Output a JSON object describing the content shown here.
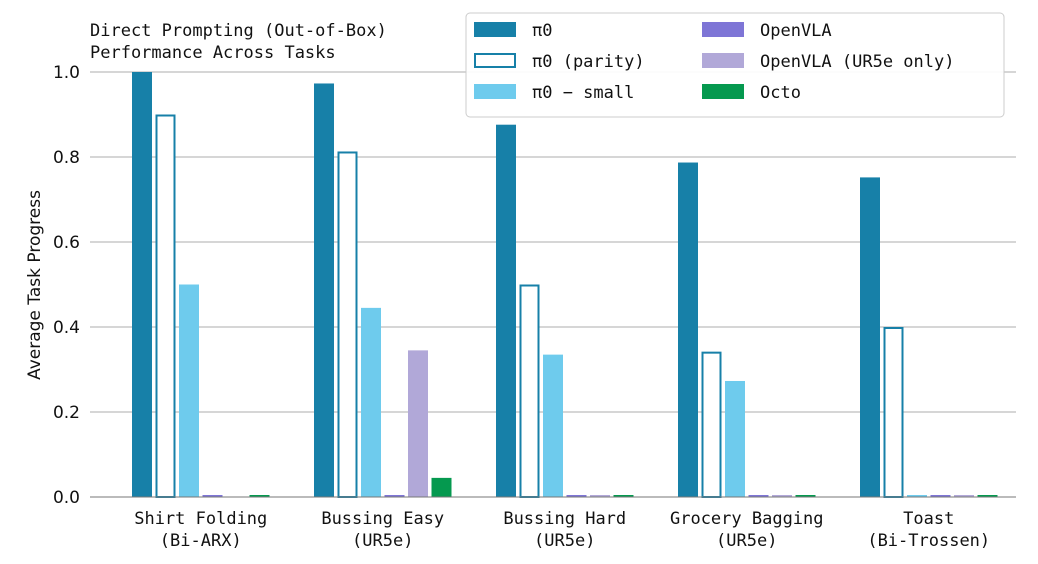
{
  "chart_data": {
    "type": "bar",
    "title": "Direct Prompting (Out-of-Box)\nPerformance Across Tasks",
    "ylabel": "Average Task Progress",
    "xlabel": "",
    "ylim": [
      0,
      1.0
    ],
    "yticks": [
      "0.0",
      "0.2",
      "0.4",
      "0.6",
      "0.8",
      "1.0"
    ],
    "ytick_values": [
      0,
      0.2,
      0.4,
      0.6,
      0.8,
      1.0
    ],
    "grid": true,
    "legend_position": "top-right",
    "categories": [
      "Shirt Folding\n(Bi-ARX)",
      "Bussing Easy\n(UR5e)",
      "Bussing Hard\n(UR5e)",
      "Grocery Bagging\n(UR5e)",
      "Toast\n(Bi-Trossen)"
    ],
    "series": [
      {
        "name": "π0",
        "color": "#1780a8",
        "style": "filled",
        "values": [
          1.0,
          0.973,
          0.876,
          0.787,
          0.752
        ]
      },
      {
        "name": "π0 (parity)",
        "color": "#1780a8",
        "style": "outline",
        "values": [
          0.9,
          0.813,
          0.5,
          0.342,
          0.4
        ]
      },
      {
        "name": "π0 − small",
        "color": "#6ecbed",
        "style": "filled",
        "values": [
          0.5,
          0.445,
          0.335,
          0.273,
          0.0
        ]
      },
      {
        "name": "OpenVLA",
        "color": "#7e75d6",
        "style": "filled",
        "values": [
          0.0,
          0.0,
          0.0,
          0.0,
          0.0
        ]
      },
      {
        "name": "OpenVLA (UR5e only)",
        "color": "#b1a8d8",
        "style": "filled",
        "values": [
          null,
          0.345,
          0.0,
          0.0,
          0.0
        ]
      },
      {
        "name": "Octo",
        "color": "#05994f",
        "style": "filled",
        "values": [
          0.0,
          0.045,
          0.0,
          0.0,
          0.0
        ]
      }
    ]
  }
}
